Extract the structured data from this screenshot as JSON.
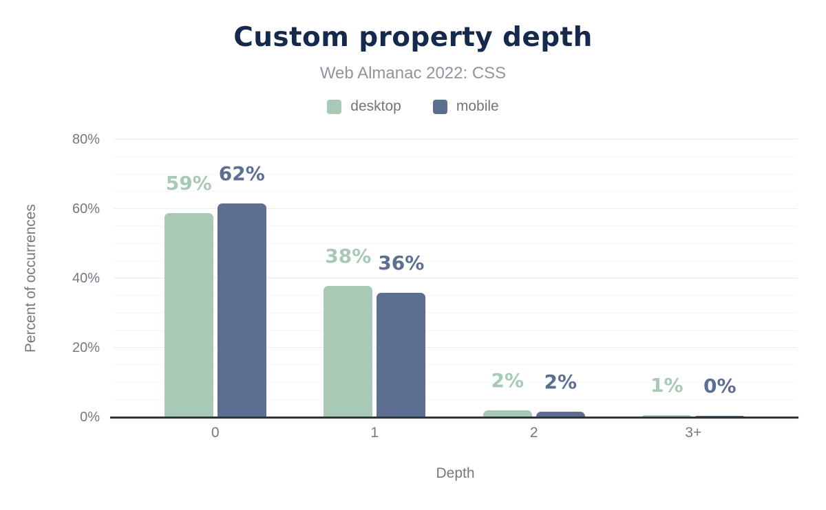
{
  "chart_data": {
    "type": "bar",
    "title": "Custom property depth",
    "subtitle": "Web Almanac 2022: CSS",
    "xlabel": "Depth",
    "ylabel": "Percent of occurrences",
    "categories": [
      "0",
      "1",
      "2",
      "3+"
    ],
    "series": [
      {
        "name": "desktop",
        "color": "#a8c9b5",
        "values": [
          59,
          38,
          2,
          1
        ],
        "labels": [
          "59%",
          "38%",
          "2%",
          "1%"
        ],
        "bar_heights_pct": [
          58.8,
          37.9,
          2.0,
          0.6
        ]
      },
      {
        "name": "mobile",
        "color": "#5d6f90",
        "values": [
          62,
          36,
          2,
          0
        ],
        "labels": [
          "62%",
          "36%",
          "2%",
          "0%"
        ],
        "bar_heights_pct": [
          61.6,
          35.9,
          1.6,
          0.4
        ]
      }
    ],
    "ylim": [
      0,
      80
    ],
    "yticks": [
      {
        "label": "0%",
        "value": 0
      },
      {
        "label": "20%",
        "value": 20
      },
      {
        "label": "40%",
        "value": 40
      },
      {
        "label": "60%",
        "value": 60
      },
      {
        "label": "80%",
        "value": 80
      }
    ],
    "minor_grid_step": 5,
    "grid": "horizontal",
    "legend_position": "top"
  },
  "colors": {
    "background": "#ffffff",
    "title": "#15294d",
    "subtitle": "#8f949d",
    "axis_text": "#74787f",
    "legend_text": "#6f747d",
    "grid_major": "#ececee",
    "grid_minor": "#f6f6f7",
    "axis_line": "#31343a"
  }
}
